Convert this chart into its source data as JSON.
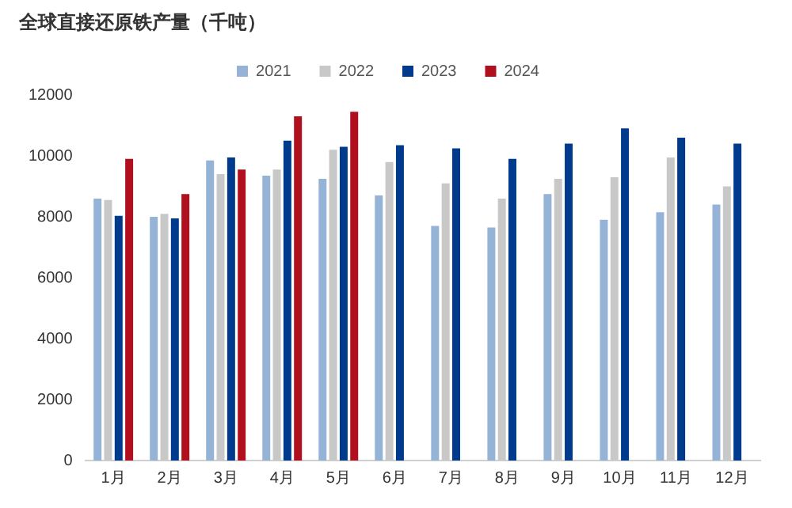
{
  "chart_data": {
    "type": "bar",
    "title": "全球直接还原铁产量（千吨）",
    "categories": [
      "1月",
      "2月",
      "3月",
      "4月",
      "5月",
      "6月",
      "7月",
      "8月",
      "9月",
      "10月",
      "11月",
      "12月"
    ],
    "series": [
      {
        "name": "2021",
        "color": "#95b3d7",
        "values": [
          8600,
          8000,
          9850,
          9350,
          9250,
          8700,
          7700,
          7650,
          8750,
          7900,
          8150,
          8400
        ]
      },
      {
        "name": "2022",
        "color": "#c8c8c8",
        "values": [
          8550,
          8100,
          9400,
          9550,
          10200,
          9800,
          9100,
          8600,
          9250,
          9300,
          9950,
          9000
        ]
      },
      {
        "name": "2023",
        "color": "#003a8c",
        "values": [
          8030,
          7950,
          9950,
          10500,
          10300,
          10350,
          10250,
          9900,
          10400,
          10900,
          10600,
          10400
        ]
      },
      {
        "name": "2024",
        "color": "#b0101e",
        "values": [
          9900,
          8750,
          9550,
          11300,
          11450,
          null,
          null,
          null,
          null,
          null,
          null,
          null
        ]
      }
    ],
    "ylim": [
      0,
      12000
    ],
    "yticks": [
      0,
      2000,
      4000,
      6000,
      8000,
      10000,
      12000
    ],
    "grid": false,
    "legend": "top"
  }
}
